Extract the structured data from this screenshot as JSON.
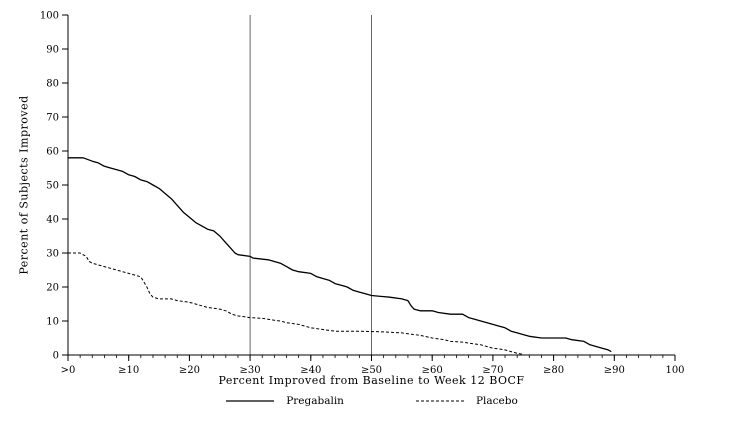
{
  "chart_data": {
    "type": "line",
    "title": "",
    "xlabel": "Percent Improved from Baseline to Week 12 BOCF",
    "ylabel": "Percent of Subjects Improved",
    "xlim": [
      0,
      100
    ],
    "ylim": [
      0,
      100
    ],
    "grid": false,
    "x_minor_step": 2,
    "x_ticks": [
      {
        "value": 0,
        "label": ">0"
      },
      {
        "value": 10,
        "label": "≥10"
      },
      {
        "value": 20,
        "label": "≥20"
      },
      {
        "value": 30,
        "label": "≥30"
      },
      {
        "value": 40,
        "label": "≥40"
      },
      {
        "value": 50,
        "label": "≥50"
      },
      {
        "value": 60,
        "label": "≥60"
      },
      {
        "value": 70,
        "label": "≥70"
      },
      {
        "value": 80,
        "label": "≥80"
      },
      {
        "value": 90,
        "label": "≥90"
      },
      {
        "value": 100,
        "label": "100"
      }
    ],
    "y_ticks": [
      0,
      10,
      20,
      30,
      40,
      50,
      60,
      70,
      80,
      90,
      100
    ],
    "reference_lines_x": [
      30,
      50
    ],
    "legend": {
      "position": "bottom",
      "entries": [
        "Pregabalin",
        "Placebo"
      ]
    },
    "series": [
      {
        "name": "Pregabalin",
        "style": "solid",
        "points": [
          [
            0,
            58
          ],
          [
            2.5,
            58
          ],
          [
            4,
            57
          ],
          [
            5,
            56.5
          ],
          [
            6,
            55.5
          ],
          [
            7,
            55
          ],
          [
            9,
            54
          ],
          [
            10,
            53
          ],
          [
            11,
            52.5
          ],
          [
            12,
            51.5
          ],
          [
            13,
            51
          ],
          [
            14,
            50
          ],
          [
            15,
            49
          ],
          [
            16,
            47.5
          ],
          [
            17,
            46
          ],
          [
            18,
            44
          ],
          [
            19,
            42
          ],
          [
            20,
            40.5
          ],
          [
            21,
            39
          ],
          [
            22,
            38
          ],
          [
            23,
            37
          ],
          [
            24,
            36.5
          ],
          [
            25,
            35
          ],
          [
            26,
            33
          ],
          [
            26.5,
            32
          ],
          [
            27,
            31
          ],
          [
            27.5,
            30
          ],
          [
            28,
            29.5
          ],
          [
            30,
            29
          ],
          [
            30.5,
            28.5
          ],
          [
            33,
            28
          ],
          [
            35,
            27
          ],
          [
            36,
            26
          ],
          [
            37,
            25
          ],
          [
            38,
            24.5
          ],
          [
            40,
            24
          ],
          [
            41,
            23
          ],
          [
            42,
            22.5
          ],
          [
            43,
            22
          ],
          [
            44,
            21
          ],
          [
            45,
            20.5
          ],
          [
            46,
            20
          ],
          [
            47,
            19
          ],
          [
            48,
            18.5
          ],
          [
            49,
            18
          ],
          [
            50,
            17.5
          ],
          [
            53,
            17
          ],
          [
            55,
            16.5
          ],
          [
            56,
            16
          ],
          [
            56.5,
            14.5
          ],
          [
            57,
            13.5
          ],
          [
            58,
            13
          ],
          [
            60,
            13
          ],
          [
            61,
            12.5
          ],
          [
            63,
            12
          ],
          [
            65,
            12
          ],
          [
            66,
            11
          ],
          [
            67,
            10.5
          ],
          [
            68,
            10
          ],
          [
            70,
            9
          ],
          [
            71,
            8.5
          ],
          [
            72,
            8
          ],
          [
            73,
            7
          ],
          [
            74,
            6.5
          ],
          [
            75,
            6
          ],
          [
            76,
            5.5
          ],
          [
            78,
            5
          ],
          [
            82,
            5
          ],
          [
            83,
            4.5
          ],
          [
            85,
            4
          ],
          [
            86,
            3
          ],
          [
            87,
            2.5
          ],
          [
            88,
            2
          ],
          [
            89,
            1.5
          ],
          [
            89.5,
            1
          ]
        ]
      },
      {
        "name": "Placebo",
        "style": "dashed",
        "points": [
          [
            0,
            30
          ],
          [
            2,
            30
          ],
          [
            3,
            29
          ],
          [
            3.5,
            27.5
          ],
          [
            4,
            27
          ],
          [
            5,
            26.5
          ],
          [
            6,
            26
          ],
          [
            7,
            25.5
          ],
          [
            8,
            25
          ],
          [
            9,
            24.5
          ],
          [
            10,
            24
          ],
          [
            11,
            23.5
          ],
          [
            12,
            23
          ],
          [
            13,
            20
          ],
          [
            13.5,
            18
          ],
          [
            14,
            17
          ],
          [
            15,
            16.5
          ],
          [
            17,
            16.5
          ],
          [
            18,
            16
          ],
          [
            20,
            15.5
          ],
          [
            21,
            15
          ],
          [
            22,
            14.5
          ],
          [
            23,
            14
          ],
          [
            25,
            13.5
          ],
          [
            26,
            13
          ],
          [
            26.5,
            12.5
          ],
          [
            27,
            12
          ],
          [
            28,
            11.5
          ],
          [
            30,
            11
          ],
          [
            32,
            10.8
          ],
          [
            34,
            10.2
          ],
          [
            35,
            10
          ],
          [
            36,
            9.5
          ],
          [
            38,
            9
          ],
          [
            39,
            8.5
          ],
          [
            40,
            8
          ],
          [
            42,
            7.5
          ],
          [
            44,
            7
          ],
          [
            48,
            7
          ],
          [
            52,
            6.8
          ],
          [
            55,
            6.5
          ],
          [
            57,
            6
          ],
          [
            58,
            5.8
          ],
          [
            60,
            5
          ],
          [
            62,
            4.5
          ],
          [
            63,
            4
          ],
          [
            65,
            3.8
          ],
          [
            66,
            3.5
          ],
          [
            68,
            3
          ],
          [
            69,
            2.5
          ],
          [
            70,
            2
          ],
          [
            71,
            1.8
          ],
          [
            72,
            1.5
          ],
          [
            73,
            1
          ],
          [
            74,
            0.5
          ],
          [
            75,
            0.2
          ]
        ]
      }
    ]
  }
}
